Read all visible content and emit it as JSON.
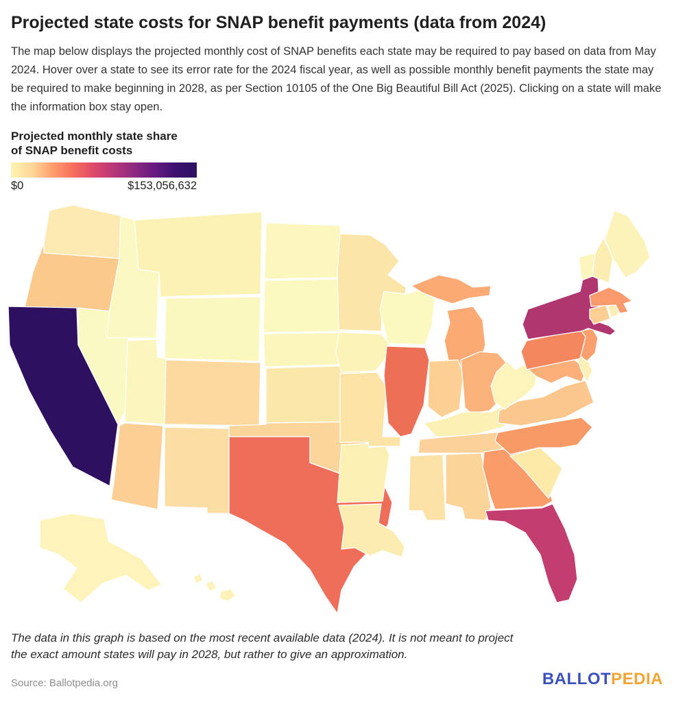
{
  "header": {
    "title": "Projected state costs for SNAP benefit payments (data from 2024)",
    "description": "The map below displays the projected monthly cost of SNAP benefits each state may be required to pay based on data from May 2024. Hover over a state to see its error rate for the 2024 fiscal year, as well as possible monthly benefit payments the state may be required to make beginning in 2028, as per Section 10105 of the One Big Beautiful Bill Act (2025). Clicking on a state will make the information box stay open."
  },
  "legend": {
    "title_line1": "Projected monthly state share",
    "title_line2": "of SNAP benefit costs",
    "min_label": "$0",
    "max_label": "$153,056,632",
    "gradient_stops": [
      "#fdf4b0",
      "#fed799",
      "#fe9f6d",
      "#f7705c",
      "#de4968",
      "#b73779",
      "#8c2981",
      "#641a80",
      "#3b0f70",
      "#2d1160"
    ]
  },
  "footer": {
    "note": "The data in this graph is based on the most recent available data (2024). It is not meant to project the exact amount states will pay in 2028, but rather to give an approximation.",
    "source": "Source: Ballotpedia.org",
    "logo_part1": "BALLOT",
    "logo_part2": "PEDIA",
    "logo_color1": "#3a50bd",
    "logo_color2": "#f5a434"
  },
  "chart_data": {
    "type": "choropleth",
    "title": "Projected monthly state share of SNAP benefit costs",
    "legend_min": 0,
    "legend_max": 153056632,
    "legend_min_label": "$0",
    "legend_max_label": "$153,056,632",
    "colorscale": "magma reversed: pale yellow (low) to dark indigo (high)",
    "states": [
      {
        "id": "WA",
        "name": "Washington",
        "color": "#fdeab2"
      },
      {
        "id": "OR",
        "name": "Oregon",
        "color": "#fbc98c"
      },
      {
        "id": "CA",
        "name": "California",
        "color": "#2d1160"
      },
      {
        "id": "NV",
        "name": "Nevada",
        "color": "#fbf9c2"
      },
      {
        "id": "ID",
        "name": "Idaho",
        "color": "#fbf9c1"
      },
      {
        "id": "MT",
        "name": "Montana",
        "color": "#fcf2b4"
      },
      {
        "id": "WY",
        "name": "Wyoming",
        "color": "#fbf8bf"
      },
      {
        "id": "UT",
        "name": "Utah",
        "color": "#fbf6bd"
      },
      {
        "id": "CO",
        "name": "Colorado",
        "color": "#fcd99e"
      },
      {
        "id": "AZ",
        "name": "Arizona",
        "color": "#fccf94"
      },
      {
        "id": "NM",
        "name": "New Mexico",
        "color": "#fcdda4"
      },
      {
        "id": "ND",
        "name": "North Dakota",
        "color": "#fbf7bf"
      },
      {
        "id": "SD",
        "name": "South Dakota",
        "color": "#fbf8c0"
      },
      {
        "id": "NE",
        "name": "Nebraska",
        "color": "#fbf6bc"
      },
      {
        "id": "KS",
        "name": "Kansas",
        "color": "#fce7ab"
      },
      {
        "id": "OK",
        "name": "Oklahoma",
        "color": "#fcd59b"
      },
      {
        "id": "TX",
        "name": "Texas",
        "color": "#ee6e5a"
      },
      {
        "id": "MN",
        "name": "Minnesota",
        "color": "#fce5a9"
      },
      {
        "id": "IA",
        "name": "Iowa",
        "color": "#fcf3b8"
      },
      {
        "id": "MO",
        "name": "Missouri",
        "color": "#fce3a6"
      },
      {
        "id": "AR",
        "name": "Arkansas",
        "color": "#fcf0b2"
      },
      {
        "id": "LA",
        "name": "Louisiana",
        "color": "#fcecb0"
      },
      {
        "id": "WI",
        "name": "Wisconsin",
        "color": "#fbf8c0"
      },
      {
        "id": "IL",
        "name": "Illinois",
        "color": "#ec6f56"
      },
      {
        "id": "MI",
        "name": "Michigan",
        "color": "#fbaa74"
      },
      {
        "id": "IN",
        "name": "Indiana",
        "color": "#fccf93"
      },
      {
        "id": "OH",
        "name": "Ohio",
        "color": "#fbb27b"
      },
      {
        "id": "KY",
        "name": "Kentucky",
        "color": "#fcf0b3"
      },
      {
        "id": "TN",
        "name": "Tennessee",
        "color": "#fcd29a"
      },
      {
        "id": "MS",
        "name": "Mississippi",
        "color": "#fce2a6"
      },
      {
        "id": "AL",
        "name": "Alabama",
        "color": "#fbd49a"
      },
      {
        "id": "GA",
        "name": "Georgia",
        "color": "#f99c69"
      },
      {
        "id": "FL",
        "name": "Florida",
        "color": "#c33d6e"
      },
      {
        "id": "SC",
        "name": "South Carolina",
        "color": "#fdeaa8"
      },
      {
        "id": "NC",
        "name": "North Carolina",
        "color": "#f89a66"
      },
      {
        "id": "VA",
        "name": "Virginia",
        "color": "#fcc78d"
      },
      {
        "id": "WV",
        "name": "West Virginia",
        "color": "#fcf4bb"
      },
      {
        "id": "MD",
        "name": "Maryland",
        "color": "#fbaf79"
      },
      {
        "id": "DE",
        "name": "Delaware",
        "color": "#fdf0b6"
      },
      {
        "id": "NJ",
        "name": "New Jersey",
        "color": "#faa06e"
      },
      {
        "id": "PA",
        "name": "Pennsylvania",
        "color": "#f5875f"
      },
      {
        "id": "NY",
        "name": "New York",
        "color": "#b0366f"
      },
      {
        "id": "CT",
        "name": "Connecticut",
        "color": "#fcce92"
      },
      {
        "id": "RI",
        "name": "Rhode Island",
        "color": "#fdeeb5"
      },
      {
        "id": "MA",
        "name": "Massachusetts",
        "color": "#f89a6b"
      },
      {
        "id": "VT",
        "name": "Vermont",
        "color": "#fcf5bd"
      },
      {
        "id": "NH",
        "name": "New Hampshire",
        "color": "#fcedb3"
      },
      {
        "id": "ME",
        "name": "Maine",
        "color": "#fcf3ba"
      },
      {
        "id": "AK",
        "name": "Alaska",
        "color": "#fdf3bb"
      },
      {
        "id": "HI",
        "name": "Hawaii",
        "color": "#fdf2b9"
      },
      {
        "id": "DC",
        "name": "District of Columbia",
        "color": "#ffffff"
      }
    ]
  }
}
